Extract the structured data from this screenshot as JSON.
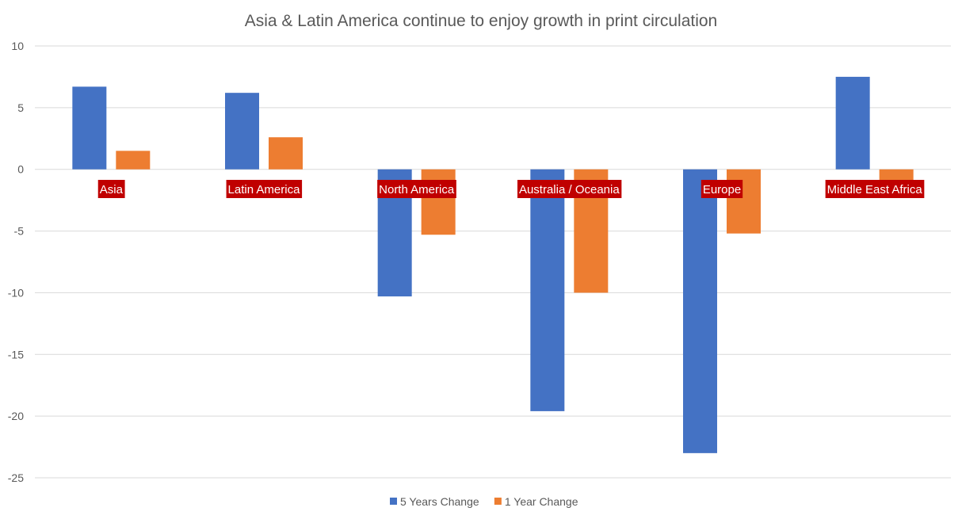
{
  "chart_data": {
    "type": "bar",
    "title": "Asia & Latin America continue to enjoy growth in print circulation",
    "xlabel": "",
    "ylabel": "",
    "categories": [
      "Asia",
      "Latin America",
      "North America",
      "Australia / Oceania",
      "Europe",
      "Middle East Africa"
    ],
    "series": [
      {
        "name": "5 Years Change",
        "color": "#4472c4",
        "values": [
          6.7,
          6.2,
          -10.3,
          -19.6,
          -23.0,
          7.5
        ]
      },
      {
        "name": "1 Year Change",
        "color": "#ed7d31",
        "values": [
          1.5,
          2.6,
          -5.3,
          -10.0,
          -5.2,
          -1.2
        ]
      }
    ],
    "ylim": [
      -25,
      10
    ],
    "yticks": [
      10,
      5,
      0,
      -5,
      -10,
      -15,
      -20,
      -25
    ],
    "grid": true,
    "legend_position": "bottom",
    "category_label_background": "#c00000"
  }
}
